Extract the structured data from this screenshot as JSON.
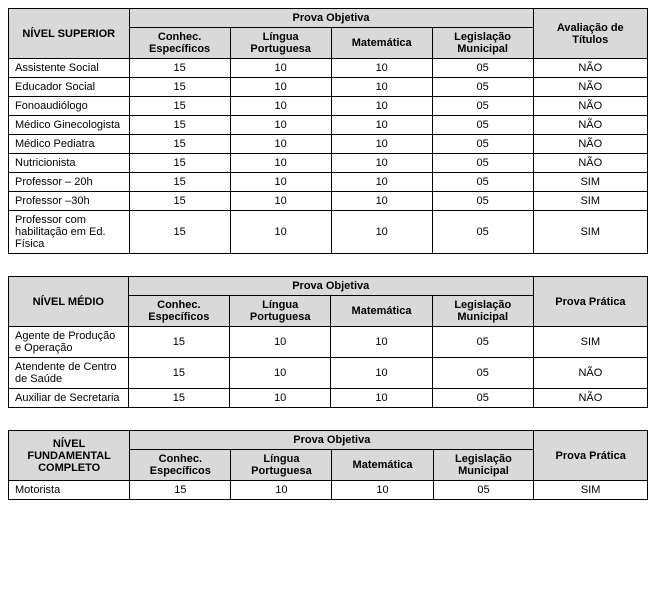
{
  "superior": {
    "level_header": "NÍVEL SUPERIOR",
    "group_header": "Prova Objetiva",
    "columns": [
      "Conhec. Específicos",
      "Língua Portuguesa",
      "Matemática",
      "Legislação Municipal"
    ],
    "extra_col": "Avaliação de Títulos",
    "rows": [
      {
        "label": "Assistente Social",
        "v": [
          "15",
          "10",
          "10",
          "05"
        ],
        "extra": "NÃO"
      },
      {
        "label": "Educador Social",
        "v": [
          "15",
          "10",
          "10",
          "05"
        ],
        "extra": "NÃO"
      },
      {
        "label": "Fonoaudiólogo",
        "v": [
          "15",
          "10",
          "10",
          "05"
        ],
        "extra": "NÃO"
      },
      {
        "label": "Médico Ginecologista",
        "v": [
          "15",
          "10",
          "10",
          "05"
        ],
        "extra": "NÃO"
      },
      {
        "label": "Médico Pediatra",
        "v": [
          "15",
          "10",
          "10",
          "05"
        ],
        "extra": "NÃO"
      },
      {
        "label": "Nutricionista",
        "v": [
          "15",
          "10",
          "10",
          "05"
        ],
        "extra": "NÃO"
      },
      {
        "label": "Professor – 20h",
        "v": [
          "15",
          "10",
          "10",
          "05"
        ],
        "extra": "SIM"
      },
      {
        "label": "Professor –30h",
        "v": [
          "15",
          "10",
          "10",
          "05"
        ],
        "extra": "SIM"
      },
      {
        "label": "Professor com habilitação em Ed. Física",
        "v": [
          "15",
          "10",
          "10",
          "05"
        ],
        "extra": "SIM"
      }
    ]
  },
  "medio": {
    "level_header": "NÍVEL MÉDIO",
    "group_header": "Prova Objetiva",
    "columns": [
      "Conhec. Específicos",
      "Língua Portuguesa",
      "Matemática",
      "Legislação Municipal"
    ],
    "extra_col": "Prova Prática",
    "rows": [
      {
        "label": "Agente de Produção e Operação",
        "v": [
          "15",
          "10",
          "10",
          "05"
        ],
        "extra": "SIM"
      },
      {
        "label": "Atendente de Centro de Saúde",
        "v": [
          "15",
          "10",
          "10",
          "05"
        ],
        "extra": "NÃO"
      },
      {
        "label": "Auxiliar de Secretaria",
        "v": [
          "15",
          "10",
          "10",
          "05"
        ],
        "extra": "NÃO"
      }
    ]
  },
  "fundamental": {
    "level_header": "NÍVEL FUNDAMENTAL COMPLETO",
    "group_header": "Prova Objetiva",
    "columns": [
      "Conhec. Específicos",
      "Língua Portuguesa",
      "Matemática",
      "Legislação Municipal"
    ],
    "extra_col": "Prova Prática",
    "rows": [
      {
        "label": "Motorista",
        "v": [
          "15",
          "10",
          "10",
          "05"
        ],
        "extra": "SIM"
      }
    ]
  }
}
